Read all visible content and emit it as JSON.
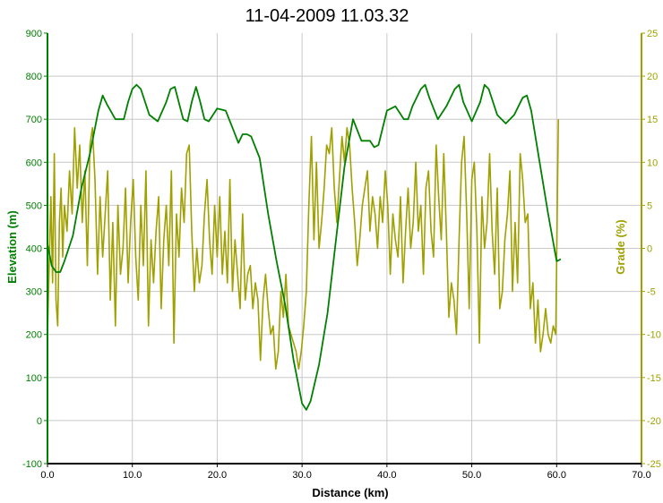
{
  "chart_data": {
    "type": "line",
    "title": "11-04-2009 11.03.32",
    "xlabel": "Distance (km)",
    "ylabel": "Elevation (m)",
    "y2label": "Grade (%)",
    "xlim": [
      0,
      70
    ],
    "ylim": [
      -100,
      900
    ],
    "y2lim": [
      -25,
      25
    ],
    "x_ticks": [
      "0.0",
      "10.0",
      "20.0",
      "30.0",
      "40.0",
      "50.0",
      "60.0",
      "70.0"
    ],
    "y_ticks": [
      "-100",
      "0",
      "100",
      "200",
      "300",
      "400",
      "500",
      "600",
      "700",
      "800",
      "900"
    ],
    "y2_ticks": [
      "-25",
      "-20",
      "-15",
      "-10",
      "-5",
      "0",
      "5",
      "10",
      "15",
      "20",
      "25"
    ],
    "grid": true,
    "colors": {
      "elevation": "#008000",
      "grade": "#a0a000",
      "grid": "#c8c8c8"
    },
    "series": [
      {
        "name": "Elevation",
        "axis": "left",
        "x": [
          0,
          0.5,
          1,
          1.5,
          2,
          3,
          4,
          5,
          6,
          6.5,
          7,
          8,
          9,
          9.5,
          10,
          10.5,
          11,
          12,
          13,
          14,
          14.5,
          15,
          16,
          16.5,
          17,
          17.5,
          18,
          18.5,
          19,
          20,
          21,
          22,
          22.5,
          23,
          23.5,
          24,
          25,
          26,
          27,
          28,
          29,
          30,
          30.5,
          31,
          32,
          33,
          34,
          35,
          36,
          37,
          38,
          38.5,
          39,
          40,
          41,
          42,
          42.5,
          43,
          44,
          44.5,
          45,
          46,
          47,
          48,
          48.5,
          49,
          50,
          51,
          51.5,
          52,
          53,
          54,
          55,
          56,
          56.5,
          57,
          58,
          59,
          60,
          60.5
        ],
        "y": [
          410,
          360,
          345,
          345,
          370,
          430,
          540,
          620,
          720,
          755,
          735,
          700,
          700,
          740,
          770,
          780,
          770,
          710,
          695,
          740,
          770,
          775,
          700,
          695,
          740,
          775,
          740,
          700,
          695,
          725,
          720,
          670,
          645,
          665,
          665,
          660,
          610,
          480,
          370,
          270,
          140,
          40,
          25,
          45,
          130,
          250,
          420,
          590,
          700,
          650,
          650,
          635,
          640,
          720,
          730,
          700,
          700,
          730,
          770,
          780,
          750,
          700,
          730,
          770,
          780,
          740,
          695,
          740,
          780,
          770,
          710,
          690,
          710,
          750,
          755,
          720,
          600,
          480,
          370,
          375
        ]
      },
      {
        "name": "Grade",
        "axis": "right",
        "x": [
          0.0,
          0.2,
          0.4,
          0.6,
          0.8,
          1.0,
          1.2,
          1.4,
          1.6,
          1.8,
          2.0,
          2.3,
          2.6,
          2.9,
          3.2,
          3.5,
          3.8,
          4.1,
          4.4,
          4.7,
          5.0,
          5.3,
          5.6,
          5.9,
          6.2,
          6.5,
          6.8,
          7.1,
          7.4,
          7.7,
          8.0,
          8.3,
          8.6,
          8.9,
          9.2,
          9.5,
          9.8,
          10.1,
          10.4,
          10.7,
          11.0,
          11.3,
          11.6,
          11.9,
          12.2,
          12.5,
          12.8,
          13.1,
          13.4,
          13.7,
          14.0,
          14.3,
          14.6,
          14.9,
          15.2,
          15.5,
          15.8,
          16.1,
          16.4,
          16.7,
          17.0,
          17.3,
          17.6,
          17.9,
          18.2,
          18.5,
          18.8,
          19.1,
          19.4,
          19.7,
          20.0,
          20.3,
          20.6,
          20.9,
          21.2,
          21.5,
          21.8,
          22.1,
          22.4,
          22.7,
          23.0,
          23.3,
          23.6,
          23.9,
          24.2,
          24.5,
          24.8,
          25.1,
          25.4,
          25.7,
          26.0,
          26.3,
          26.6,
          26.9,
          27.2,
          27.5,
          27.8,
          28.1,
          28.4,
          28.7,
          29.0,
          29.3,
          29.6,
          29.9,
          30.2,
          30.5,
          30.8,
          31.1,
          31.4,
          31.7,
          32.0,
          32.3,
          32.6,
          32.9,
          33.2,
          33.5,
          33.8,
          34.1,
          34.4,
          34.7,
          35.0,
          35.3,
          35.6,
          35.9,
          36.2,
          36.5,
          36.8,
          37.1,
          37.4,
          37.7,
          38.0,
          38.3,
          38.6,
          38.9,
          39.2,
          39.5,
          39.8,
          40.1,
          40.4,
          40.7,
          41.0,
          41.3,
          41.6,
          41.9,
          42.2,
          42.5,
          42.8,
          43.1,
          43.4,
          43.7,
          44.0,
          44.3,
          44.6,
          44.9,
          45.2,
          45.5,
          45.8,
          46.1,
          46.4,
          46.7,
          47.0,
          47.3,
          47.6,
          47.9,
          48.2,
          48.5,
          48.8,
          49.1,
          49.4,
          49.7,
          50.0,
          50.3,
          50.6,
          50.9,
          51.2,
          51.5,
          51.8,
          52.1,
          52.4,
          52.7,
          53.0,
          53.3,
          53.6,
          53.9,
          54.2,
          54.5,
          54.8,
          55.1,
          55.4,
          55.7,
          56.0,
          56.3,
          56.6,
          56.9,
          57.2,
          57.5,
          57.8,
          58.1,
          58.4,
          58.7,
          59.0,
          59.3,
          59.6,
          59.9,
          60.2
        ],
        "y": [
          -10,
          -2,
          6,
          -4,
          11,
          -6,
          -9,
          3,
          7,
          -1,
          5,
          2,
          9,
          4,
          14,
          7,
          12,
          3,
          9,
          -2,
          12,
          14,
          8,
          -3,
          6,
          -1,
          4,
          9,
          -6,
          3,
          -9,
          5,
          -3,
          0,
          7,
          -4,
          3,
          8,
          -1,
          -6,
          5,
          -2,
          9,
          -9,
          1,
          -4,
          2,
          6,
          -7,
          1,
          5,
          -2,
          9,
          -11,
          4,
          -1,
          7,
          3,
          11,
          12,
          2,
          -5,
          0,
          -4,
          -2,
          4,
          8,
          1,
          -3,
          5,
          -1,
          6,
          -3,
          2,
          -4,
          8,
          -5,
          1,
          -3,
          -7,
          4,
          -6,
          -3,
          -2,
          -7,
          -4,
          -6,
          -13,
          -6,
          -3,
          -7,
          -10,
          -9,
          -14,
          -12,
          -5,
          -8,
          -3,
          -9,
          -10,
          -11,
          -12,
          -14,
          -12,
          -9,
          -5,
          5,
          13,
          1,
          10,
          0,
          3,
          7,
          12,
          11,
          14,
          7,
          3,
          8,
          13,
          10,
          14,
          12,
          7,
          3,
          -2,
          1,
          5,
          7,
          9,
          2,
          6,
          4,
          0,
          6,
          3,
          9,
          5,
          -3,
          4,
          1,
          -1,
          6,
          -4,
          2,
          7,
          0,
          3,
          10,
          2,
          5,
          -3,
          7,
          9,
          2,
          -1,
          12,
          6,
          1,
          11,
          2,
          -8,
          -4,
          -6,
          -10,
          1,
          10,
          13,
          4,
          -7,
          8,
          10,
          2,
          -11,
          6,
          0,
          3,
          11,
          2,
          -3,
          7,
          -7,
          -5,
          1,
          4,
          9,
          -5,
          3,
          -4,
          11,
          8,
          3,
          4,
          -7,
          -4,
          -11,
          -6,
          -12,
          -10,
          -7,
          -10,
          -11,
          -9,
          -10,
          15
        ]
      }
    ]
  }
}
